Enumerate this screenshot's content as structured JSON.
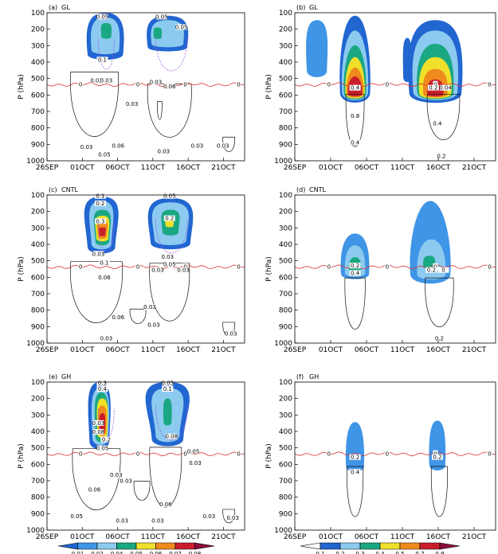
{
  "chart_data": [
    {
      "type": "heatmap",
      "panel": "(a)",
      "experiment": "GL",
      "ylabel": "P (hPa)",
      "x_ticks": [
        "26SEP",
        "01OCT",
        "06OCT",
        "11OCT",
        "16OCT",
        "21OCT"
      ],
      "y_ticks": [
        "100",
        "200",
        "300",
        "400",
        "500",
        "600",
        "700",
        "800",
        "900",
        "1000"
      ],
      "ylim": [
        1000,
        100
      ],
      "contour_labels": [
        "0.05",
        "0.1",
        "0.03",
        "0.03",
        "0.05",
        "0.05",
        "0.03",
        "0.06",
        "0.03",
        "0.03",
        "0.06",
        "0.05",
        "0.03",
        "0.03",
        "0.03"
      ],
      "zero_line_labels": [
        "0",
        "0",
        "0",
        "0"
      ]
    },
    {
      "type": "heatmap",
      "panel": "(b)",
      "experiment": "GL",
      "ylabel": "P (hPa)",
      "x_ticks": [
        "26SEP",
        "01OCT",
        "06OCT",
        "11OCT",
        "16OCT",
        "21OCT"
      ],
      "y_ticks": [
        "100",
        "200",
        "300",
        "400",
        "500",
        "600",
        "700",
        "800",
        "900",
        "1000"
      ],
      "ylim": [
        1000,
        100
      ],
      "contour_labels": [
        "0.4",
        "0.8",
        "0.4",
        "0.2",
        "0.04",
        "0.4",
        "0.2"
      ],
      "zero_line_labels": [
        "0",
        "0",
        "0",
        "0"
      ]
    },
    {
      "type": "heatmap",
      "panel": "(c)",
      "experiment": "CNTL",
      "ylabel": "P (hPa)",
      "x_ticks": [
        "26SEP",
        "01OCT",
        "06OCT",
        "11OCT",
        "16OCT",
        "21OCT"
      ],
      "y_ticks": [
        "100",
        "200",
        "300",
        "400",
        "500",
        "600",
        "700",
        "800",
        "900",
        "1000"
      ],
      "ylim": [
        1000,
        100
      ],
      "contour_labels": [
        "0.1",
        "0.2",
        "0.3",
        "0.03",
        "0.1",
        "0.06",
        "0.05",
        "0.2",
        "0.03",
        "0.05",
        "0.03",
        "0.03",
        "0.06",
        "0.03",
        "0.03",
        "0.03",
        "0.03"
      ],
      "zero_line_labels": [
        "0",
        "0",
        "0",
        "0"
      ]
    },
    {
      "type": "heatmap",
      "panel": "(d)",
      "experiment": "CNTL",
      "ylabel": "P (hPa)",
      "x_ticks": [
        "26SEP",
        "01OCT",
        "06OCT",
        "11OCT",
        "16OCT",
        "21OCT"
      ],
      "y_ticks": [
        "100",
        "200",
        "300",
        "400",
        "500",
        "600",
        "700",
        "800",
        "900",
        "1000"
      ],
      "ylim": [
        1000,
        100
      ],
      "contour_labels": [
        "0.2",
        "0.4",
        "0.2",
        "0",
        "0.2"
      ],
      "zero_line_labels": [
        "0",
        "0",
        "0",
        "0"
      ]
    },
    {
      "type": "heatmap",
      "panel": "(e)",
      "experiment": "GH",
      "ylabel": "P (hPa)",
      "x_ticks": [
        "26SEP",
        "01OCT",
        "06OCT",
        "11OCT",
        "16OCT",
        "21OCT"
      ],
      "y_ticks": [
        "100",
        "200",
        "300",
        "400",
        "500",
        "600",
        "700",
        "800",
        "900",
        "1000"
      ],
      "ylim": [
        1000,
        100
      ],
      "contour_labels": [
        "0.3",
        "0.4",
        "0.03",
        "0.08",
        "0.2",
        "0.05",
        "0.05",
        "0.1",
        "0.08",
        "0.05",
        "0.03",
        "0.03",
        "0.06",
        "0.03",
        "0.05",
        "0.03",
        "0.06",
        "0.03",
        "0.03",
        "0.03"
      ],
      "zero_line_labels": [
        "0",
        "0",
        "0",
        "0"
      ]
    },
    {
      "type": "heatmap",
      "panel": "(f)",
      "experiment": "GH",
      "ylabel": "P (hPa)",
      "x_ticks": [
        "26SEP",
        "01OCT",
        "06OCT",
        "11OCT",
        "16OCT",
        "21OCT"
      ],
      "y_ticks": [
        "100",
        "200",
        "300",
        "400",
        "500",
        "600",
        "700",
        "800",
        "900",
        "1000"
      ],
      "ylim": [
        1000,
        100
      ],
      "contour_labels": [
        "0.2",
        "0.4",
        "0.2"
      ],
      "zero_line_labels": [
        "0",
        "0",
        "0",
        "0"
      ]
    }
  ],
  "colorbars": [
    {
      "levels": [
        "0.01",
        "0.02",
        "0.04",
        "0.05",
        "0.06",
        "0.07",
        "0.08"
      ],
      "colors": [
        "#2166d1",
        "#3f95e6",
        "#8ccaf0",
        "#1aa882",
        "#f0e02a",
        "#f08a1c",
        "#c81e2c",
        "#8b0d3d"
      ]
    },
    {
      "levels": [
        "0.1",
        "0.2",
        "0.3",
        "0.4",
        "0.5",
        "0.7",
        "0.9"
      ],
      "colors": [
        "#ffffff",
        "#2166d1",
        "#8ccaf0",
        "#1aa882",
        "#f0e02a",
        "#f08a1c",
        "#c81e2c",
        "#8b0d3d"
      ]
    }
  ],
  "colors": {
    "zero_line": "#e03030",
    "dashed_contour": "#9b59e6",
    "contour": "#111111"
  }
}
